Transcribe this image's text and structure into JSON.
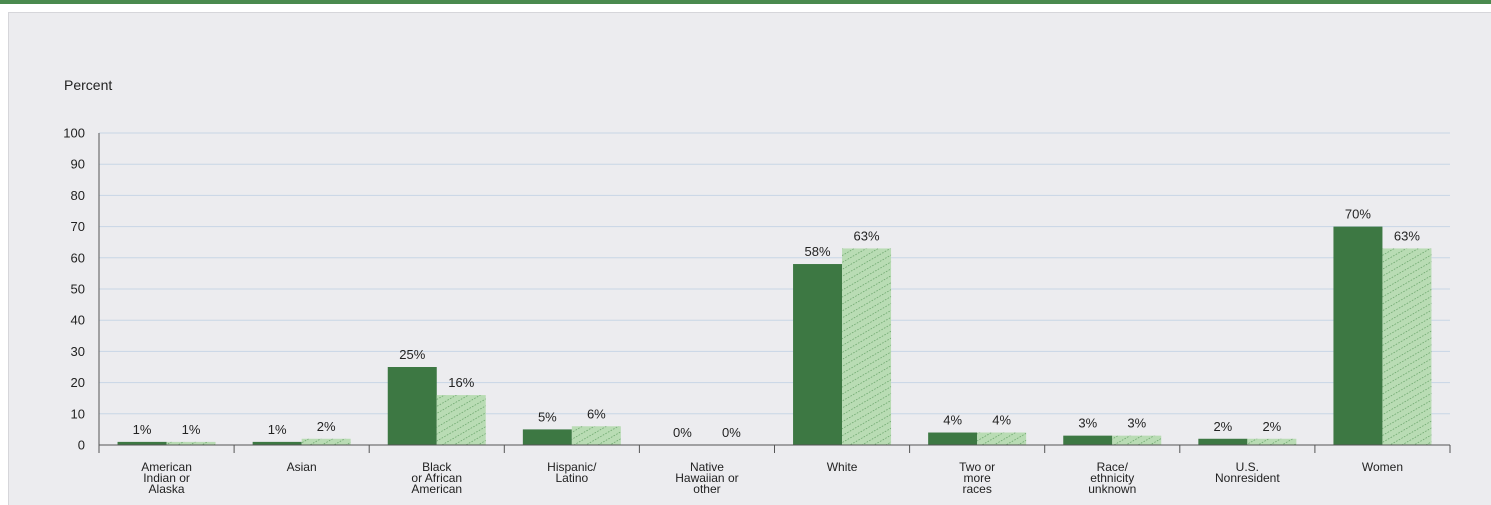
{
  "chart_data": {
    "type": "bar",
    "ylabel": "Percent",
    "ylim": [
      0,
      100
    ],
    "yticks": [
      0,
      10,
      20,
      30,
      40,
      50,
      60,
      70,
      80,
      90,
      100
    ],
    "grid": true,
    "categories": [
      [
        "American",
        "Indian or",
        "Alaska"
      ],
      [
        "Asian"
      ],
      [
        "Black",
        "or African",
        "American"
      ],
      [
        "Hispanic/",
        "Latino"
      ],
      [
        "Native",
        "Hawaiian or",
        "other"
      ],
      [
        "White"
      ],
      [
        "Two or",
        "more",
        "races"
      ],
      [
        "Race/",
        "ethnicity",
        "unknown"
      ],
      [
        "U.S.",
        "Nonresident"
      ],
      [
        "Women"
      ]
    ],
    "series": [
      {
        "values": [
          1,
          1,
          25,
          5,
          0,
          58,
          4,
          3,
          2,
          70
        ],
        "labels": [
          "1%",
          "1%",
          "25%",
          "5%",
          "0%",
          "58%",
          "4%",
          "3%",
          "2%",
          "70%"
        ],
        "color": "#3d7843",
        "pattern": "solid"
      },
      {
        "values": [
          1,
          2,
          16,
          6,
          0,
          63,
          4,
          3,
          2,
          63
        ],
        "labels": [
          "1%",
          "2%",
          "16%",
          "6%",
          "0%",
          "63%",
          "4%",
          "3%",
          "2%",
          "63%"
        ],
        "color": "#b9dcb4",
        "pattern": "hatched"
      }
    ]
  },
  "colors": {
    "accent_bar": "#4a8a4f",
    "panel_bg": "#ececef",
    "grid": "#c8d6e6"
  }
}
